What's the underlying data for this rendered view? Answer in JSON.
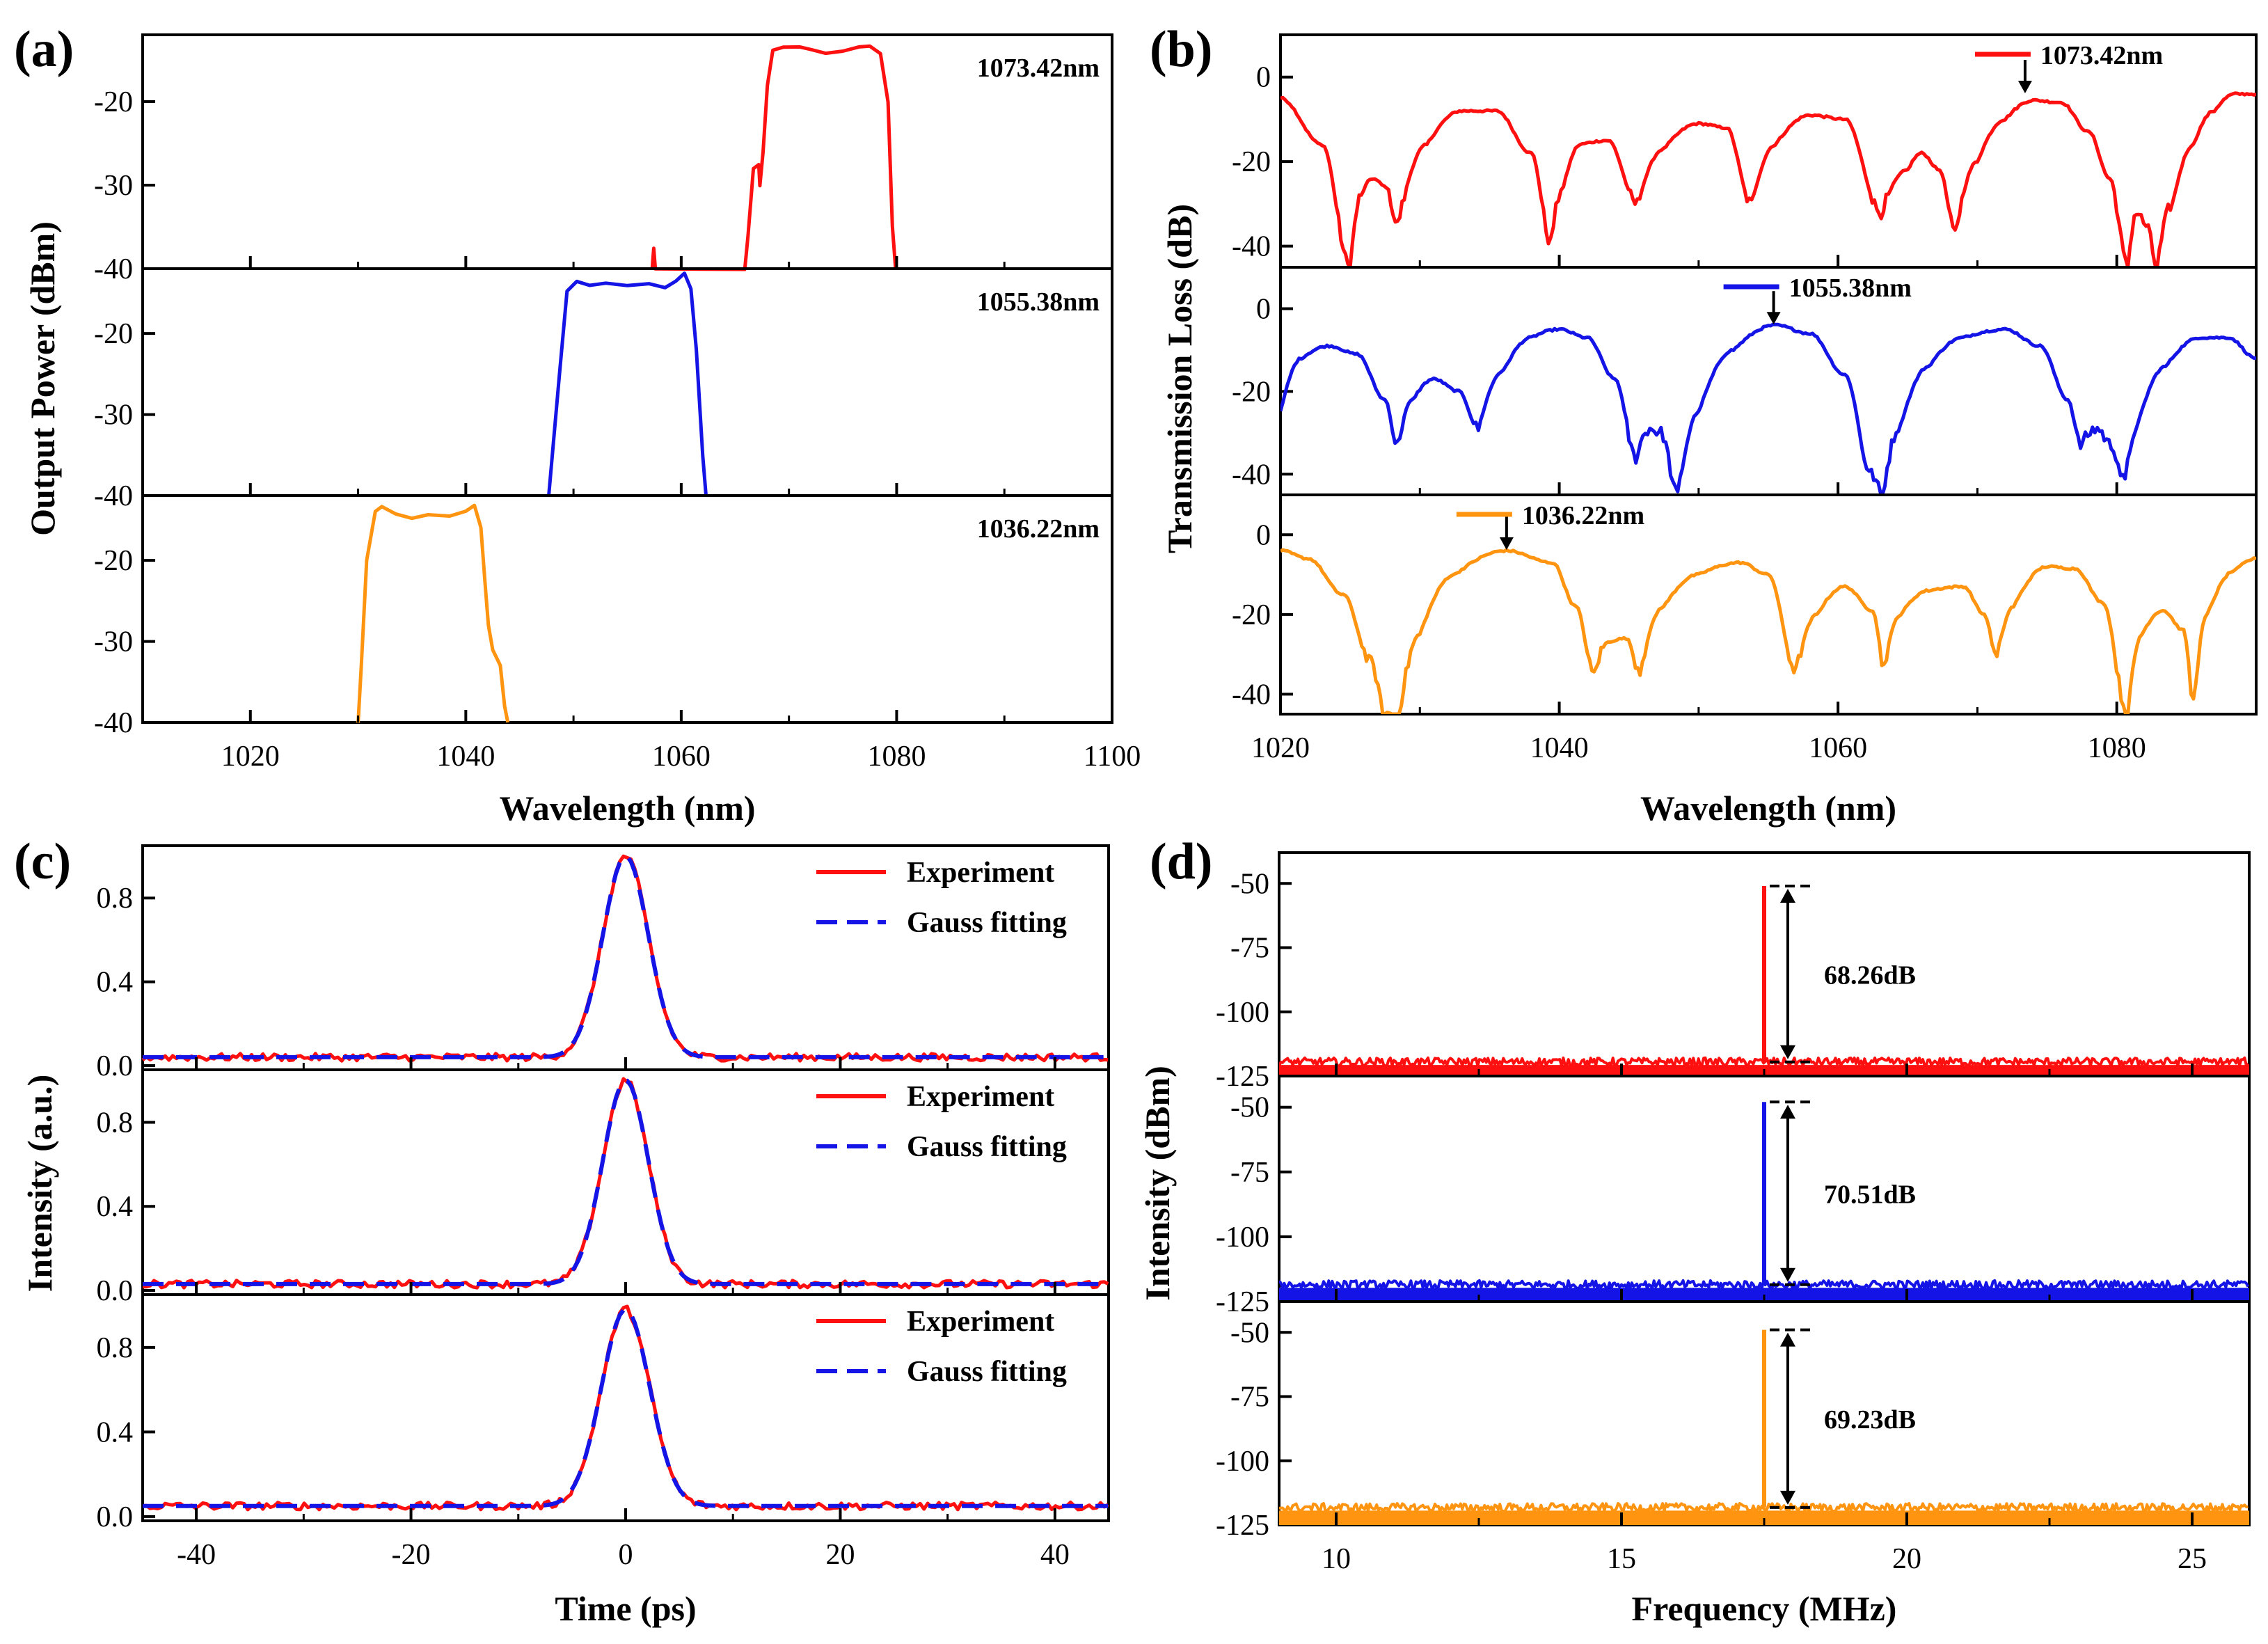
{
  "colors": {
    "red": "#ff1010",
    "blue": "#1414e6",
    "orange": "#ff9410",
    "black": "#000000"
  },
  "chart_data": [
    {
      "panel_label": "(a)",
      "type": "line",
      "title": "",
      "xlabel": "Wavelength (nm)",
      "ylabel": "Output Power (dBm)",
      "xlim": [
        1010,
        1100
      ],
      "ylim": [
        -40,
        -12
      ],
      "x_ticks": [
        1020,
        1040,
        1060,
        1080,
        1100
      ],
      "x_tick_labels": [
        "1020",
        "1040",
        "1060",
        "1080",
        "1100"
      ],
      "y_ticks": [
        -40,
        -30,
        -20
      ],
      "y_tick_labels": [
        "-40",
        "-30",
        "-20"
      ],
      "subplots": [
        {
          "label": "1073.42nm",
          "color": "red",
          "points": [
            [
              1057.3,
              -40
            ],
            [
              1057.45,
              -37.6
            ],
            [
              1057.6,
              -40
            ],
            [
              1065.9,
              -40
            ],
            [
              1066.2,
              -36
            ],
            [
              1066.7,
              -28
            ],
            [
              1067.2,
              -27.6
            ],
            [
              1067.3,
              -30
            ],
            [
              1067.6,
              -26
            ],
            [
              1068.0,
              -18
            ],
            [
              1068.5,
              -13.8
            ],
            [
              1069.5,
              -13.5
            ],
            [
              1071.0,
              -13.4
            ],
            [
              1072.0,
              -13.8
            ],
            [
              1073.4,
              -14.2
            ],
            [
              1075.0,
              -14.0
            ],
            [
              1076.5,
              -13.5
            ],
            [
              1077.5,
              -13.3
            ],
            [
              1078.5,
              -14.2
            ],
            [
              1079.2,
              -20
            ],
            [
              1079.6,
              -35
            ],
            [
              1079.9,
              -40
            ]
          ]
        },
        {
          "label": "1055.38nm",
          "color": "blue",
          "points": [
            [
              1047.7,
              -40
            ],
            [
              1048.1,
              -34
            ],
            [
              1048.7,
              -25
            ],
            [
              1049.4,
              -14.8
            ],
            [
              1050.3,
              -13.5
            ],
            [
              1051.5,
              -14.0
            ],
            [
              1053.0,
              -13.8
            ],
            [
              1055.0,
              -14.1
            ],
            [
              1057.0,
              -13.8
            ],
            [
              1058.5,
              -14.4
            ],
            [
              1059.5,
              -13.6
            ],
            [
              1060.3,
              -12.6
            ],
            [
              1060.9,
              -14.5
            ],
            [
              1061.4,
              -22
            ],
            [
              1062.0,
              -35
            ],
            [
              1062.3,
              -40
            ]
          ]
        },
        {
          "label": "1036.22nm",
          "color": "orange",
          "points": [
            [
              1030.0,
              -40
            ],
            [
              1030.3,
              -33
            ],
            [
              1030.8,
              -20
            ],
            [
              1031.6,
              -13.9
            ],
            [
              1032.2,
              -13.3
            ],
            [
              1033.5,
              -14.3
            ],
            [
              1035.0,
              -14.8
            ],
            [
              1036.5,
              -14.3
            ],
            [
              1038.5,
              -14.5
            ],
            [
              1040.0,
              -14.0
            ],
            [
              1040.8,
              -13.2
            ],
            [
              1041.4,
              -16
            ],
            [
              1041.8,
              -23
            ],
            [
              1042.1,
              -28
            ],
            [
              1042.5,
              -31
            ],
            [
              1043.2,
              -33
            ],
            [
              1043.6,
              -38
            ],
            [
              1043.9,
              -40
            ]
          ]
        }
      ]
    },
    {
      "panel_label": "(b)",
      "type": "line",
      "title": "",
      "xlabel": "Wavelength (nm)",
      "ylabel": "Transmission Loss (dB)",
      "xlim": [
        1020,
        1090
      ],
      "ylim": [
        -45,
        10
      ],
      "x_ticks": [
        1020,
        1040,
        1060,
        1080
      ],
      "x_tick_labels": [
        "1020",
        "1040",
        "1060",
        "1080"
      ],
      "y_ticks": [
        -40,
        -20,
        0
      ],
      "y_tick_labels": [
        "-40",
        "-20",
        "0"
      ],
      "subplots": [
        {
          "label": "1073.42nm",
          "color": "red",
          "peak_nm": 1073.42,
          "points": [
            [
              1020,
              -5
            ],
            [
              1023,
              -16
            ],
            [
              1025,
              -45
            ],
            [
              1025.8,
              -28
            ],
            [
              1026.6,
              -24
            ],
            [
              1027.6,
              -26
            ],
            [
              1028.4,
              -35
            ],
            [
              1030.5,
              -16
            ],
            [
              1033,
              -8
            ],
            [
              1035.5,
              -8
            ],
            [
              1038,
              -18
            ],
            [
              1039.4,
              -39
            ],
            [
              1040.3,
              -26
            ],
            [
              1041.5,
              -16
            ],
            [
              1043.5,
              -15
            ],
            [
              1045.6,
              -30
            ],
            [
              1047.5,
              -17
            ],
            [
              1050,
              -11
            ],
            [
              1052,
              -12
            ],
            [
              1053.8,
              -30
            ],
            [
              1055.5,
              -16
            ],
            [
              1058,
              -9
            ],
            [
              1060.5,
              -10
            ],
            [
              1063.1,
              -32
            ],
            [
              1065,
              -22
            ],
            [
              1066,
              -18
            ],
            [
              1067.3,
              -22
            ],
            [
              1068.4,
              -37
            ],
            [
              1070,
              -20
            ],
            [
              1072,
              -10
            ],
            [
              1074,
              -5.5
            ],
            [
              1076,
              -6
            ],
            [
              1078,
              -13
            ],
            [
              1079.5,
              -24
            ],
            [
              1080.8,
              -45
            ],
            [
              1081.4,
              -32
            ],
            [
              1082.1,
              -35
            ],
            [
              1082.9,
              -45
            ],
            [
              1084,
              -30
            ],
            [
              1085.5,
              -16
            ],
            [
              1087,
              -8
            ],
            [
              1088.5,
              -4
            ],
            [
              1090,
              -4
            ]
          ]
        },
        {
          "label": "1055.38nm",
          "color": "blue",
          "peak_nm": 1055.38,
          "points": [
            [
              1020,
              -25
            ],
            [
              1021.5,
              -12
            ],
            [
              1023.5,
              -9
            ],
            [
              1025.5,
              -11
            ],
            [
              1027.5,
              -22
            ],
            [
              1028.4,
              -33
            ],
            [
              1029.5,
              -22
            ],
            [
              1031,
              -17
            ],
            [
              1032.8,
              -20
            ],
            [
              1034.2,
              -29
            ],
            [
              1036,
              -15
            ],
            [
              1038,
              -7
            ],
            [
              1040,
              -5
            ],
            [
              1042,
              -7
            ],
            [
              1044,
              -17
            ],
            [
              1045.5,
              -36
            ],
            [
              1046.5,
              -29
            ],
            [
              1047.3,
              -30
            ],
            [
              1048.5,
              -45
            ],
            [
              1050,
              -25
            ],
            [
              1052.5,
              -10
            ],
            [
              1055.5,
              -4
            ],
            [
              1058,
              -6
            ],
            [
              1060.5,
              -16
            ],
            [
              1062.4,
              -40
            ],
            [
              1063.2,
              -45
            ],
            [
              1064.5,
              -28
            ],
            [
              1066.5,
              -14
            ],
            [
              1069,
              -7
            ],
            [
              1072,
              -5
            ],
            [
              1074.5,
              -9
            ],
            [
              1076.5,
              -22
            ],
            [
              1077.4,
              -33
            ],
            [
              1078.6,
              -29
            ],
            [
              1079.6,
              -33
            ],
            [
              1080.6,
              -42
            ],
            [
              1081.5,
              -28
            ],
            [
              1083.5,
              -14
            ],
            [
              1086,
              -7
            ],
            [
              1088,
              -7
            ],
            [
              1090,
              -12
            ]
          ]
        },
        {
          "label": "1036.22nm",
          "color": "orange",
          "peak_nm": 1036.22,
          "points": [
            [
              1020,
              -4
            ],
            [
              1022,
              -6
            ],
            [
              1024.5,
              -15
            ],
            [
              1026.5,
              -32
            ],
            [
              1027.5,
              -45
            ],
            [
              1028.5,
              -45
            ],
            [
              1030,
              -25
            ],
            [
              1032.5,
              -10
            ],
            [
              1036.2,
              -4
            ],
            [
              1039.5,
              -7
            ],
            [
              1041.2,
              -18
            ],
            [
              1042.5,
              -35
            ],
            [
              1043.5,
              -27
            ],
            [
              1044.8,
              -26
            ],
            [
              1045.8,
              -34
            ],
            [
              1047.5,
              -18
            ],
            [
              1050,
              -10
            ],
            [
              1053,
              -7
            ],
            [
              1055,
              -10
            ],
            [
              1057,
              -34
            ],
            [
              1058.5,
              -20
            ],
            [
              1060.5,
              -13
            ],
            [
              1062.5,
              -19
            ],
            [
              1063.3,
              -33
            ],
            [
              1064.5,
              -20
            ],
            [
              1066.5,
              -14
            ],
            [
              1069,
              -13
            ],
            [
              1070.5,
              -20
            ],
            [
              1071.4,
              -31
            ],
            [
              1072.6,
              -18
            ],
            [
              1075,
              -8
            ],
            [
              1077,
              -8.5
            ],
            [
              1079,
              -17
            ],
            [
              1080.8,
              -45
            ],
            [
              1081.8,
              -25
            ],
            [
              1083.3,
              -19
            ],
            [
              1084.8,
              -24
            ],
            [
              1085.5,
              -42
            ],
            [
              1086.5,
              -20
            ],
            [
              1088.5,
              -9
            ],
            [
              1090,
              -6
            ]
          ]
        }
      ]
    },
    {
      "panel_label": "(c)",
      "type": "line",
      "title": "",
      "xlabel": "Time (ps)",
      "ylabel": "Intensity (a.u.)",
      "xlim": [
        -45,
        45
      ],
      "ylim": [
        -0.02,
        1.05
      ],
      "x_ticks": [
        -40,
        -20,
        0,
        20,
        40
      ],
      "x_tick_labels": [
        "-40",
        "-20",
        "0",
        "20",
        "40"
      ],
      "y_ticks": [
        0.0,
        0.4,
        0.8
      ],
      "y_tick_labels": [
        "0.0",
        "0.4",
        "0.8"
      ],
      "legend": [
        "Experiment",
        "Gauss fitting"
      ],
      "legend_position": "top-right",
      "series_colors": {
        "Experiment": "red",
        "Gauss fitting": "blue"
      },
      "subplots": [
        {
          "baseline": 0.04,
          "peak": 1.0,
          "center_ps": 0,
          "fwhm_ps": 5.0
        },
        {
          "baseline": 0.03,
          "peak": 1.0,
          "center_ps": 0,
          "fwhm_ps": 5.0
        },
        {
          "baseline": 0.05,
          "peak": 0.98,
          "center_ps": 0,
          "fwhm_ps": 5.3
        }
      ]
    },
    {
      "panel_label": "(d)",
      "type": "line",
      "title": "",
      "xlabel": "Frequency (MHz)",
      "ylabel": "Intensity (dBm)",
      "xlim": [
        9,
        26
      ],
      "ylim": [
        -125,
        -38
      ],
      "x_ticks": [
        10,
        15,
        20,
        25
      ],
      "x_tick_labels": [
        "10",
        "15",
        "20",
        "25"
      ],
      "y_ticks": [
        -125,
        -100,
        -75,
        -50
      ],
      "y_tick_labels": [
        "-125",
        "-100",
        "-75",
        "-50"
      ],
      "subplots": [
        {
          "color": "red",
          "peak_mhz": 17.5,
          "peak_dbm": -51,
          "noise_floor_dbm": -119.5,
          "snr_label": "68.26dB"
        },
        {
          "color": "blue",
          "peak_mhz": 17.5,
          "peak_dbm": -48,
          "noise_floor_dbm": -118.5,
          "snr_label": "70.51dB"
        },
        {
          "color": "orange",
          "peak_mhz": 17.5,
          "peak_dbm": -49,
          "noise_floor_dbm": -118.2,
          "snr_label": "69.23dB"
        }
      ]
    }
  ]
}
